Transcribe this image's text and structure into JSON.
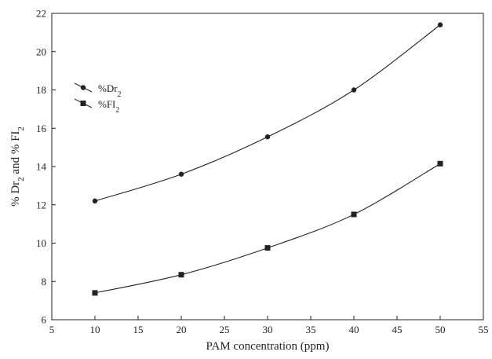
{
  "chart_data": {
    "type": "line",
    "xlabel": "PAM concentration (ppm)",
    "ylabel_parts": [
      "% Dr",
      "2",
      " and % FI",
      "2"
    ],
    "xlim": [
      5,
      55
    ],
    "ylim": [
      6,
      22
    ],
    "xticks": [
      5,
      10,
      15,
      20,
      25,
      30,
      35,
      40,
      45,
      50,
      55
    ],
    "yticks": [
      6,
      8,
      10,
      12,
      14,
      16,
      18,
      20,
      22
    ],
    "grid": false,
    "legend_position": "upper-left",
    "series": [
      {
        "name_parts": [
          "%Dr",
          "2"
        ],
        "marker": "circle",
        "x": [
          10,
          20,
          30,
          40,
          50
        ],
        "y": [
          12.2,
          13.6,
          15.55,
          18.0,
          21.4
        ]
      },
      {
        "name_parts": [
          "%FI",
          "2"
        ],
        "marker": "square",
        "x": [
          10,
          20,
          30,
          40,
          50
        ],
        "y": [
          7.4,
          8.35,
          9.75,
          11.5,
          14.15
        ]
      }
    ]
  }
}
